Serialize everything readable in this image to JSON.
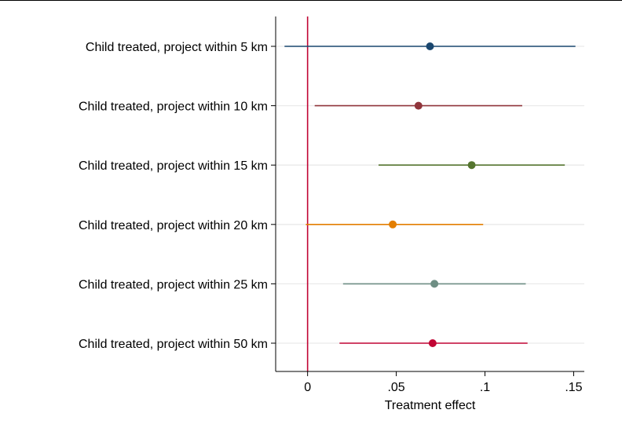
{
  "chart_data": {
    "type": "scatter",
    "subtype": "coefficient-plot",
    "xlabel": "Treatment effect",
    "xlim": [
      -0.018,
      0.156
    ],
    "xticks": [
      {
        "value": 0,
        "label": "0"
      },
      {
        "value": 0.05,
        "label": ".05"
      },
      {
        "value": 0.1,
        "label": ".1"
      },
      {
        "value": 0.15,
        "label": ".15"
      }
    ],
    "reference_line": {
      "x": 0,
      "color": "#c10534"
    },
    "grid": true,
    "series": [
      {
        "label": "Child treated, project within 5 km",
        "estimate": 0.069,
        "ci_low": -0.013,
        "ci_high": 0.151,
        "color": "#1a476f"
      },
      {
        "label": "Child treated, project within 10 km",
        "estimate": 0.0625,
        "ci_low": 0.004,
        "ci_high": 0.121,
        "color": "#90353b"
      },
      {
        "label": "Child treated, project within 15 km",
        "estimate": 0.0925,
        "ci_low": 0.04,
        "ci_high": 0.145,
        "color": "#55752f"
      },
      {
        "label": "Child treated, project within 20 km",
        "estimate": 0.048,
        "ci_low": -0.001,
        "ci_high": 0.099,
        "color": "#e37e00"
      },
      {
        "label": "Child treated, project within 25 km",
        "estimate": 0.0715,
        "ci_low": 0.02,
        "ci_high": 0.123,
        "color": "#6e8e84"
      },
      {
        "label": "Child treated, project within 50 km",
        "estimate": 0.0705,
        "ci_low": 0.018,
        "ci_high": 0.124,
        "color": "#c10534"
      }
    ]
  }
}
